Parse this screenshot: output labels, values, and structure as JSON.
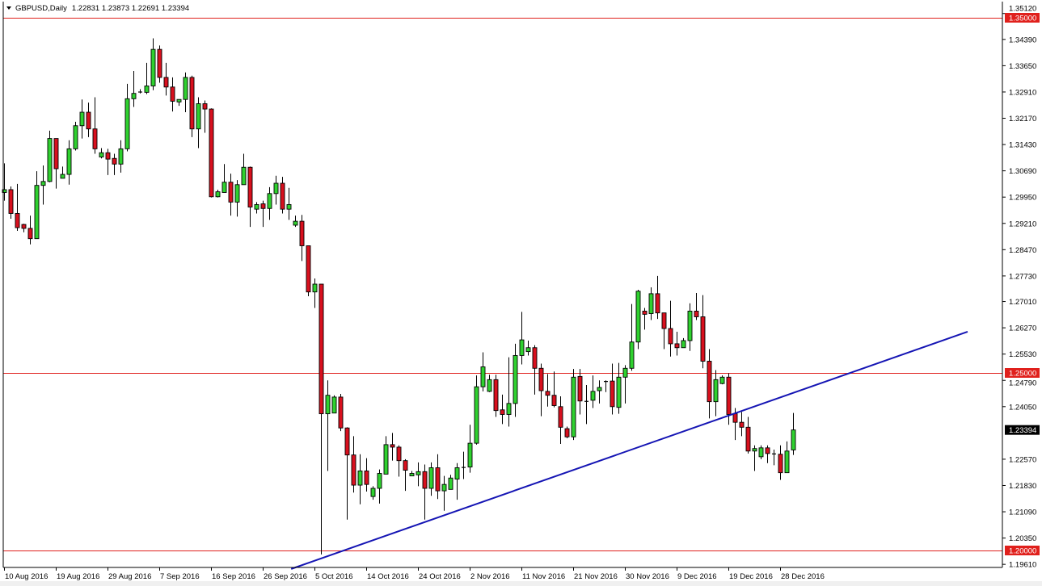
{
  "header": {
    "symbol": "GBPUSD,Daily",
    "ohlc_text": "1.22831 1.23873 1.22691 1.23394"
  },
  "colors": {
    "bull": "#2fd12f",
    "bear": "#d8101e",
    "outline": "#000000",
    "level_line": "#e0201c",
    "trendline": "#1515b4",
    "background": "#ffffff"
  },
  "chart_data": {
    "type": "candlestick",
    "symbol": "GBPUSD",
    "timeframe": "Daily",
    "ylim": [
      1.1948,
      1.3527
    ],
    "grid": false,
    "y_ticks": [
      "1.35120",
      "1.34390",
      "1.33650",
      "1.32910",
      "1.32170",
      "1.31430",
      "1.30690",
      "1.29950",
      "1.29210",
      "1.28470",
      "1.27730",
      "1.27010",
      "1.26270",
      "1.25530",
      "1.24790",
      "1.24050",
      "1.22570",
      "1.21830",
      "1.21090",
      "1.20350",
      "1.19610"
    ],
    "x_ticks": [
      {
        "bar": 0,
        "label": "10 Aug 2016"
      },
      {
        "bar": 8,
        "label": "19 Aug 2016"
      },
      {
        "bar": 16,
        "label": "29 Aug 2016"
      },
      {
        "bar": 24,
        "label": "7 Sep 2016"
      },
      {
        "bar": 32,
        "label": "16 Sep 2016"
      },
      {
        "bar": 40,
        "label": "26 Sep 2016"
      },
      {
        "bar": 48,
        "label": "5 Oct 2016"
      },
      {
        "bar": 56,
        "label": "14 Oct 2016"
      },
      {
        "bar": 64,
        "label": "24 Oct 2016"
      },
      {
        "bar": 72,
        "label": "2 Nov 2016"
      },
      {
        "bar": 80,
        "label": "11 Nov 2016"
      },
      {
        "bar": 88,
        "label": "21 Nov 2016"
      },
      {
        "bar": 96,
        "label": "30 Nov 2016"
      },
      {
        "bar": 104,
        "label": "9 Dec 2016"
      },
      {
        "bar": 112,
        "label": "19 Dec 2016"
      },
      {
        "bar": 120,
        "label": "28 Dec 2016"
      }
    ],
    "levels": [
      {
        "price": 1.35,
        "label": "1.35000"
      },
      {
        "price": 1.25,
        "label": "1.25000"
      },
      {
        "price": 1.2,
        "label": "1.20000"
      }
    ],
    "current_price": {
      "price": 1.23394,
      "label": "1.23394"
    },
    "trendline": {
      "from": {
        "bar": 44.4,
        "price": 1.1948
      },
      "to": {
        "bar": 149,
        "price": 1.2616
      }
    },
    "ohlc": [
      [
        1.3008,
        1.309,
        1.2985,
        1.3016
      ],
      [
        1.3016,
        1.3025,
        1.2934,
        1.2949
      ],
      [
        1.2949,
        1.3032,
        1.29,
        1.2909
      ],
      [
        1.2918,
        1.292,
        1.2896,
        1.2907
      ],
      [
        1.2907,
        1.2943,
        1.2862,
        1.2878
      ],
      [
        1.2878,
        1.3068,
        1.2878,
        1.3028
      ],
      [
        1.3028,
        1.3084,
        1.2974,
        1.3039
      ],
      [
        1.3039,
        1.3182,
        1.3037,
        1.316
      ],
      [
        1.316,
        1.316,
        1.3019,
        1.3075
      ],
      [
        1.3048,
        1.3081,
        1.3048,
        1.3059
      ],
      [
        1.3059,
        1.3155,
        1.303,
        1.3131
      ],
      [
        1.3131,
        1.3207,
        1.3126,
        1.3196
      ],
      [
        1.3196,
        1.327,
        1.316,
        1.3234
      ],
      [
        1.3234,
        1.3261,
        1.3164,
        1.3187
      ],
      [
        1.3187,
        1.3276,
        1.3117,
        1.3131
      ],
      [
        1.3108,
        1.3133,
        1.3104,
        1.312
      ],
      [
        1.312,
        1.3131,
        1.3057,
        1.3102
      ],
      [
        1.3104,
        1.3117,
        1.3057,
        1.3088
      ],
      [
        1.3088,
        1.3155,
        1.3064,
        1.3131
      ],
      [
        1.3131,
        1.3314,
        1.3124,
        1.3272
      ],
      [
        1.3272,
        1.335,
        1.3249,
        1.3287
      ],
      [
        1.329,
        1.3299,
        1.3287,
        1.3292
      ],
      [
        1.329,
        1.3373,
        1.3285,
        1.3308
      ],
      [
        1.3308,
        1.3442,
        1.3296,
        1.3411
      ],
      [
        1.3411,
        1.3422,
        1.3317,
        1.3332
      ],
      [
        1.3332,
        1.3373,
        1.3281,
        1.3305
      ],
      [
        1.3305,
        1.3332,
        1.3236,
        1.3265
      ],
      [
        1.3263,
        1.327,
        1.3252,
        1.327
      ],
      [
        1.327,
        1.3346,
        1.3234,
        1.3332
      ],
      [
        1.3332,
        1.3337,
        1.3164,
        1.3187
      ],
      [
        1.3187,
        1.3276,
        1.3133,
        1.3258
      ],
      [
        1.3258,
        1.3267,
        1.3176,
        1.3243
      ],
      [
        1.3243,
        1.3245,
        1.2994,
        1.2996
      ],
      [
        1.2996,
        1.3016,
        1.2994,
        1.301
      ],
      [
        1.3008,
        1.3088,
        1.3008,
        1.3037
      ],
      [
        1.3037,
        1.3061,
        1.2943,
        1.2981
      ],
      [
        1.2981,
        1.3043,
        1.294,
        1.303
      ],
      [
        1.303,
        1.3117,
        1.303,
        1.3079
      ],
      [
        1.3079,
        1.3081,
        1.2911,
        1.2967
      ],
      [
        1.2961,
        1.2981,
        1.2949,
        1.2974
      ],
      [
        1.2976,
        1.2985,
        1.2911,
        1.2963
      ],
      [
        1.2963,
        1.3023,
        1.2931,
        1.3005
      ],
      [
        1.3005,
        1.3055,
        1.2974,
        1.3034
      ],
      [
        1.3034,
        1.3052,
        1.2949,
        1.2961
      ],
      [
        1.2961,
        1.3021,
        1.2931,
        1.2974
      ],
      [
        1.2916,
        1.2943,
        1.2911,
        1.2927
      ],
      [
        1.2927,
        1.2945,
        1.2815,
        1.2858
      ],
      [
        1.2858,
        1.2858,
        1.2716,
        1.2728
      ],
      [
        1.2728,
        1.2766,
        1.2683,
        1.275
      ],
      [
        1.275,
        1.275,
        1.1989,
        1.2385
      ],
      [
        1.2385,
        1.2479,
        1.2224,
        1.2437
      ],
      [
        1.2387,
        1.2437,
        1.2387,
        1.2432
      ],
      [
        1.2432,
        1.2441,
        1.2336,
        1.2345
      ],
      [
        1.2345,
        1.2347,
        1.2087,
        1.2269
      ],
      [
        1.2269,
        1.2322,
        1.2163,
        1.2184
      ],
      [
        1.2184,
        1.2271,
        1.213,
        1.2224
      ],
      [
        1.2224,
        1.226,
        1.2166,
        1.2186
      ],
      [
        1.2152,
        1.2181,
        1.2143,
        1.2175
      ],
      [
        1.2175,
        1.2228,
        1.2132,
        1.2217
      ],
      [
        1.2215,
        1.2322,
        1.2215,
        1.2298
      ],
      [
        1.2298,
        1.2331,
        1.2253,
        1.2291
      ],
      [
        1.2291,
        1.2296,
        1.2208,
        1.2253
      ],
      [
        1.2253,
        1.2257,
        1.2168,
        1.2226
      ],
      [
        1.221,
        1.2224,
        1.221,
        1.2217
      ],
      [
        1.2213,
        1.2248,
        1.2181,
        1.2222
      ],
      [
        1.2222,
        1.2242,
        1.2087,
        1.2175
      ],
      [
        1.2175,
        1.2248,
        1.2154,
        1.2233
      ],
      [
        1.2233,
        1.2271,
        1.2145,
        1.2168
      ],
      [
        1.2168,
        1.221,
        1.2112,
        1.2186
      ],
      [
        1.2172,
        1.2213,
        1.2172,
        1.2204
      ],
      [
        1.2201,
        1.2246,
        1.2143,
        1.2233
      ],
      [
        1.2233,
        1.2278,
        1.2201,
        1.2235
      ],
      [
        1.2235,
        1.2354,
        1.2219,
        1.2302
      ],
      [
        1.2302,
        1.2493,
        1.2298,
        1.2461
      ],
      [
        1.2461,
        1.2558,
        1.2448,
        1.2517
      ],
      [
        1.2448,
        1.2495,
        1.2446,
        1.2481
      ],
      [
        1.2481,
        1.2495,
        1.2376,
        1.2394
      ],
      [
        1.2396,
        1.2439,
        1.2356,
        1.2383
      ],
      [
        1.2383,
        1.2544,
        1.2349,
        1.2414
      ],
      [
        1.2414,
        1.2582,
        1.2376,
        1.2549
      ],
      [
        1.2549,
        1.2672,
        1.2524,
        1.2593
      ],
      [
        1.256,
        1.2591,
        1.2549,
        1.2571
      ],
      [
        1.2571,
        1.2578,
        1.2439,
        1.2513
      ],
      [
        1.2513,
        1.2526,
        1.2378,
        1.245
      ],
      [
        1.2448,
        1.2497,
        1.2405,
        1.2437
      ],
      [
        1.2437,
        1.2504,
        1.2403,
        1.2408
      ],
      [
        1.2405,
        1.2434,
        1.23,
        1.2347
      ],
      [
        1.2343,
        1.2349,
        1.2316,
        1.232
      ],
      [
        1.232,
        1.2511,
        1.2311,
        1.2488
      ],
      [
        1.249,
        1.2511,
        1.2383,
        1.2421
      ],
      [
        1.2421,
        1.2466,
        1.2356,
        1.2421
      ],
      [
        1.2423,
        1.2493,
        1.2401,
        1.2448
      ],
      [
        1.245,
        1.2479,
        1.2414,
        1.2459
      ],
      [
        1.2477,
        1.2479,
        1.2446,
        1.2477
      ],
      [
        1.2477,
        1.2526,
        1.2383,
        1.2405
      ],
      [
        1.2403,
        1.2528,
        1.2385,
        1.2488
      ],
      [
        1.2488,
        1.2522,
        1.2414,
        1.2513
      ],
      [
        1.2513,
        1.2694,
        1.2506,
        1.2587
      ],
      [
        1.2587,
        1.2734,
        1.2567,
        1.273
      ],
      [
        1.2674,
        1.2683,
        1.2622,
        1.2665
      ],
      [
        1.2667,
        1.2741,
        1.2649,
        1.2723
      ],
      [
        1.2723,
        1.2773,
        1.2652,
        1.2669
      ],
      [
        1.2669,
        1.2669,
        1.2567,
        1.2625
      ],
      [
        1.2625,
        1.2703,
        1.2546,
        1.2582
      ],
      [
        1.2582,
        1.2616,
        1.2549,
        1.2571
      ],
      [
        1.2571,
        1.2598,
        1.2571,
        1.2591
      ],
      [
        1.2591,
        1.2696,
        1.2562,
        1.2674
      ],
      [
        1.2674,
        1.2725,
        1.2649,
        1.2658
      ],
      [
        1.2658,
        1.2719,
        1.2513,
        1.2533
      ],
      [
        1.2533,
        1.2567,
        1.2372,
        1.2419
      ],
      [
        1.2419,
        1.2508,
        1.2378,
        1.2481
      ],
      [
        1.247,
        1.2493,
        1.2468,
        1.2488
      ],
      [
        1.2488,
        1.2499,
        1.2354,
        1.2383
      ],
      [
        1.2385,
        1.2401,
        1.2311,
        1.2361
      ],
      [
        1.2361,
        1.239,
        1.2322,
        1.2347
      ],
      [
        1.2347,
        1.2376,
        1.2273,
        1.228
      ],
      [
        1.228,
        1.2296,
        1.2224,
        1.2287
      ],
      [
        1.2264,
        1.2296,
        1.2257,
        1.2289
      ],
      [
        1.2289,
        1.2296,
        1.2246,
        1.2273
      ],
      [
        1.2273,
        1.2284,
        1.224,
        1.2273
      ],
      [
        1.2271,
        1.2296,
        1.2199,
        1.2219
      ],
      [
        1.2219,
        1.2307,
        1.2219,
        1.228
      ],
      [
        1.22831,
        1.23873,
        1.22691,
        1.23394
      ]
    ]
  }
}
